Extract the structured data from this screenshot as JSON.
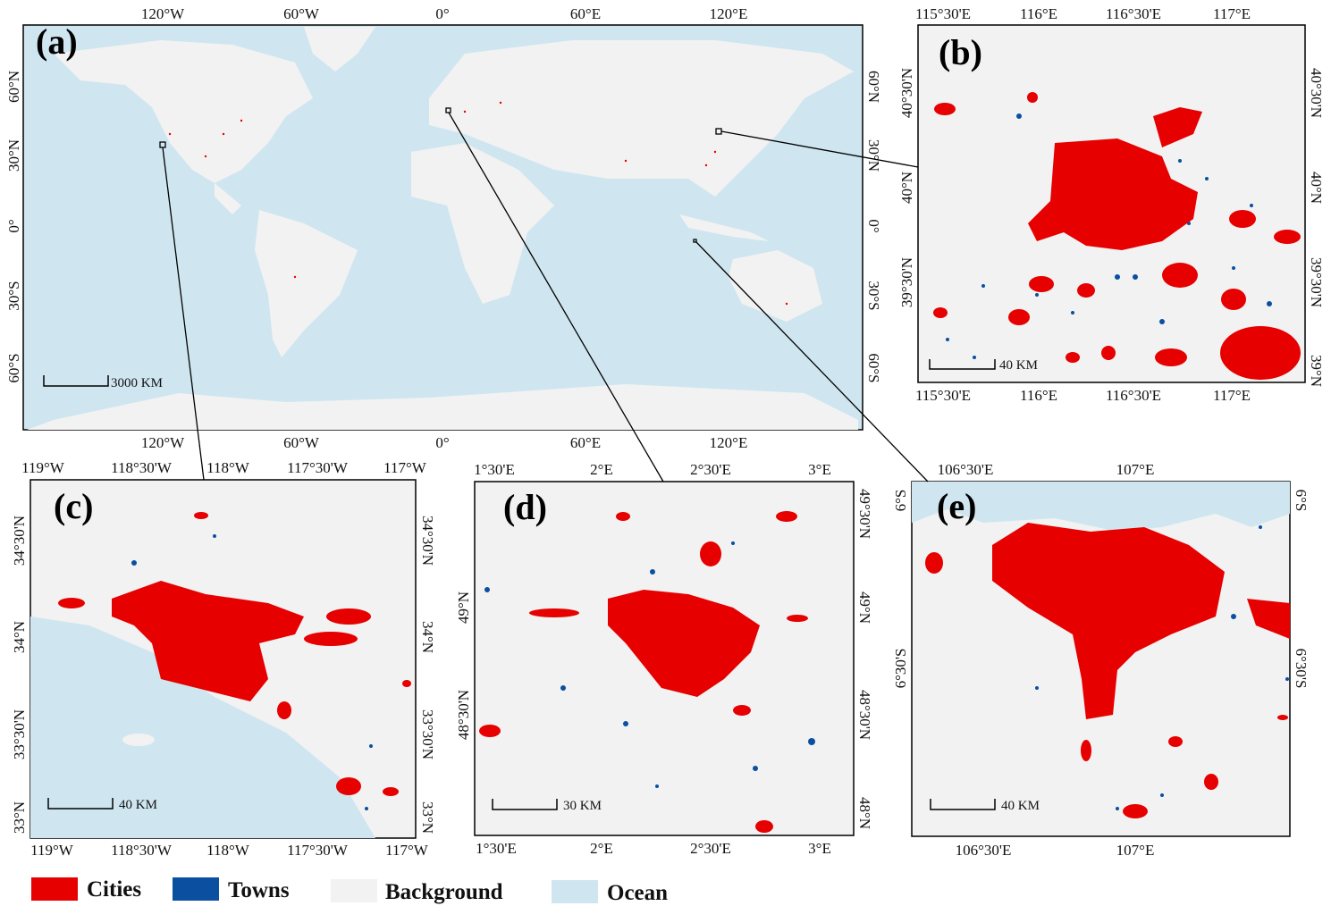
{
  "colors": {
    "cities": "#e60000",
    "towns": "#0a4fa0",
    "background": "#f2f2f2",
    "ocean": "#cfe6f0"
  },
  "legend": [
    {
      "label": "Cities",
      "color": "#e60000"
    },
    {
      "label": "Towns",
      "color": "#0a4fa0"
    },
    {
      "label": "Background",
      "color": "#f2f2f2"
    },
    {
      "label": "Ocean",
      "color": "#cfe6f0"
    }
  ],
  "panels": {
    "a": {
      "label": "(a)",
      "scale": "3000 KM",
      "lon_ticks": [
        "120°W",
        "60°W",
        "0°",
        "60°E",
        "120°E"
      ],
      "lat_ticks": [
        "60°N",
        "30°N",
        "0°",
        "30°S",
        "60°S"
      ]
    },
    "b": {
      "label": "(b)",
      "scale": "40 KM",
      "lon_ticks": [
        "115°30'E",
        "116°E",
        "116°30'E",
        "117°E"
      ],
      "lat_left": [
        "40°30'N",
        "40°N",
        "39°30'N"
      ],
      "lat_right": [
        "40°30'N",
        "40°N",
        "39°30'N",
        "39°N"
      ]
    },
    "c": {
      "label": "(c)",
      "scale": "40 KM",
      "lon_ticks": [
        "119°W",
        "118°30'W",
        "118°W",
        "117°30'W",
        "117°W"
      ],
      "lat_ticks": [
        "34°30'N",
        "34°N",
        "33°30'N",
        "33°N"
      ]
    },
    "d": {
      "label": "(d)",
      "scale": "30 KM",
      "lon_ticks": [
        "1°30'E",
        "2°E",
        "2°30'E",
        "3°E"
      ],
      "lat_left": [
        "49°N",
        "48°30'N"
      ],
      "lat_right": [
        "49°30'N",
        "49°N",
        "48°30'N",
        "48°N"
      ]
    },
    "e": {
      "label": "(e)",
      "scale": "40 KM",
      "lon_ticks": [
        "106°30'E",
        "107°E"
      ],
      "lat_ticks": [
        "6°S",
        "6°30'S"
      ]
    }
  }
}
